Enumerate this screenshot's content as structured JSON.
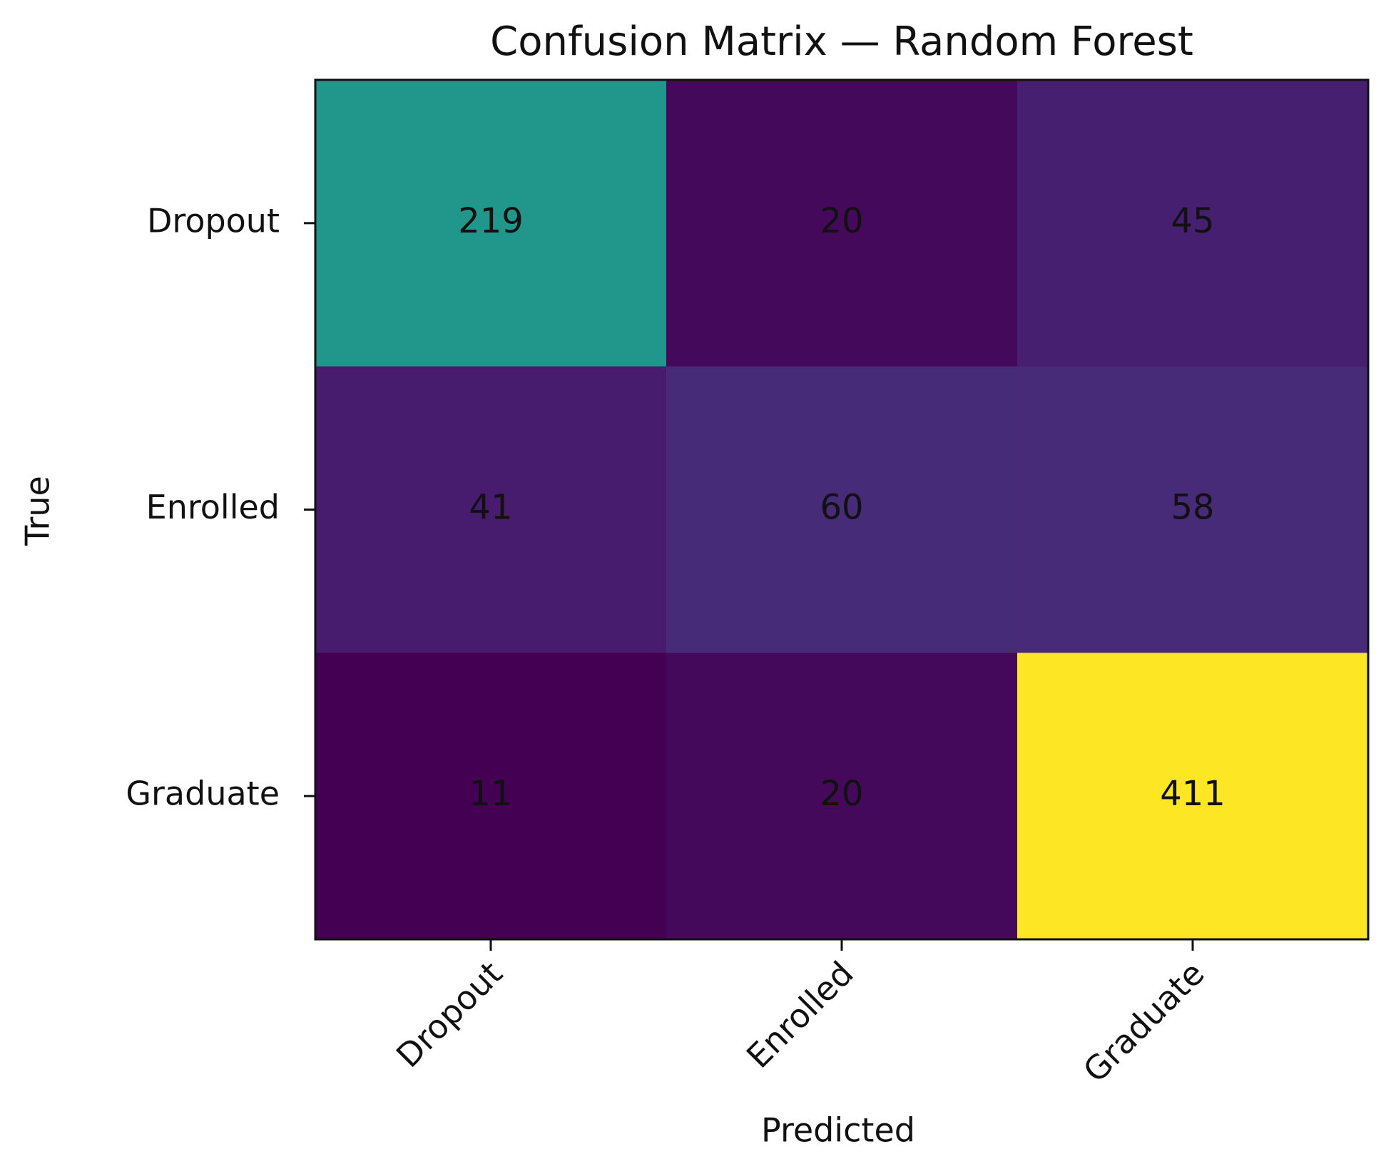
{
  "chart_data": {
    "type": "heatmap",
    "title": "Confusion Matrix — Random Forest",
    "x_label": "Predicted",
    "y_label": "True",
    "x_categories": [
      "Dropout",
      "Enrolled",
      "Graduate"
    ],
    "y_categories": [
      "Dropout",
      "Enrolled",
      "Graduate"
    ],
    "values": [
      [
        219,
        20,
        45
      ],
      [
        41,
        60,
        58
      ],
      [
        11,
        20,
        411
      ]
    ],
    "colormap": "viridis"
  }
}
